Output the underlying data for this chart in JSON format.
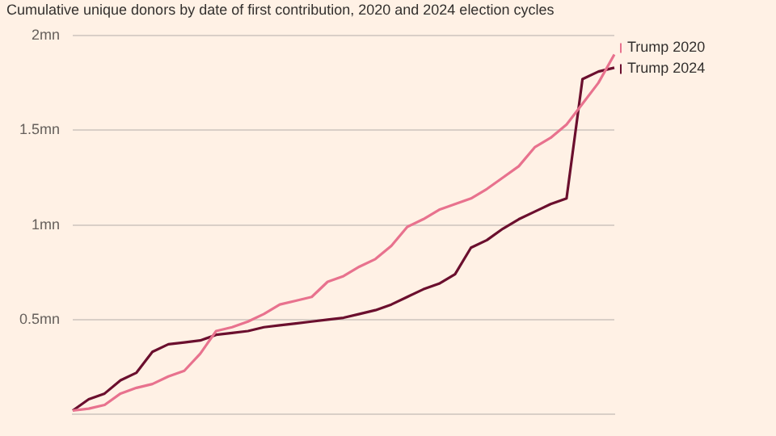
{
  "chart_data": {
    "type": "line",
    "title": "Cumulative unique donors by date of first contribution, 2020 and 2024 election cycles",
    "categories": [
      null,
      null,
      null,
      null,
      null,
      null,
      null,
      null,
      null,
      null,
      null,
      null,
      null,
      null,
      null,
      null,
      null,
      null,
      null,
      null,
      null,
      null,
      null,
      null,
      null,
      null,
      null,
      null,
      null,
      null,
      null,
      null,
      null,
      null,
      null
    ],
    "series": [
      {
        "name": "Trump 2020",
        "color": "#e8728e",
        "values": [
          0.02,
          0.03,
          0.05,
          0.11,
          0.14,
          0.16,
          0.2,
          0.23,
          0.32,
          0.44,
          0.46,
          0.49,
          0.53,
          0.58,
          0.6,
          0.62,
          0.7,
          0.73,
          0.78,
          0.82,
          0.89,
          0.99,
          1.03,
          1.08,
          1.11,
          1.14,
          1.19,
          1.25,
          1.31,
          1.41,
          1.46,
          1.53,
          1.64,
          1.75,
          1.9
        ]
      },
      {
        "name": "Trump 2024",
        "color": "#6b0f2e",
        "values": [
          0.02,
          0.08,
          0.11,
          0.18,
          0.22,
          0.33,
          0.37,
          0.38,
          0.39,
          0.42,
          0.43,
          0.44,
          0.46,
          0.47,
          0.48,
          0.49,
          0.5,
          0.51,
          0.53,
          0.55,
          0.58,
          0.62,
          0.66,
          0.69,
          0.74,
          0.88,
          0.92,
          0.98,
          1.03,
          1.07,
          1.11,
          1.14,
          1.77,
          1.81,
          1.83
        ]
      }
    ],
    "ylim": [
      0,
      2
    ],
    "yticks": [
      {
        "value": 0.5,
        "label": "0.5mn"
      },
      {
        "value": 1,
        "label": "1mn"
      },
      {
        "value": 1.5,
        "label": "1.5mn"
      },
      {
        "value": 2,
        "label": "2mn"
      }
    ],
    "grid": "y",
    "legend": "right",
    "marker": "none",
    "line_style": "solid",
    "tick_labels": "y"
  }
}
